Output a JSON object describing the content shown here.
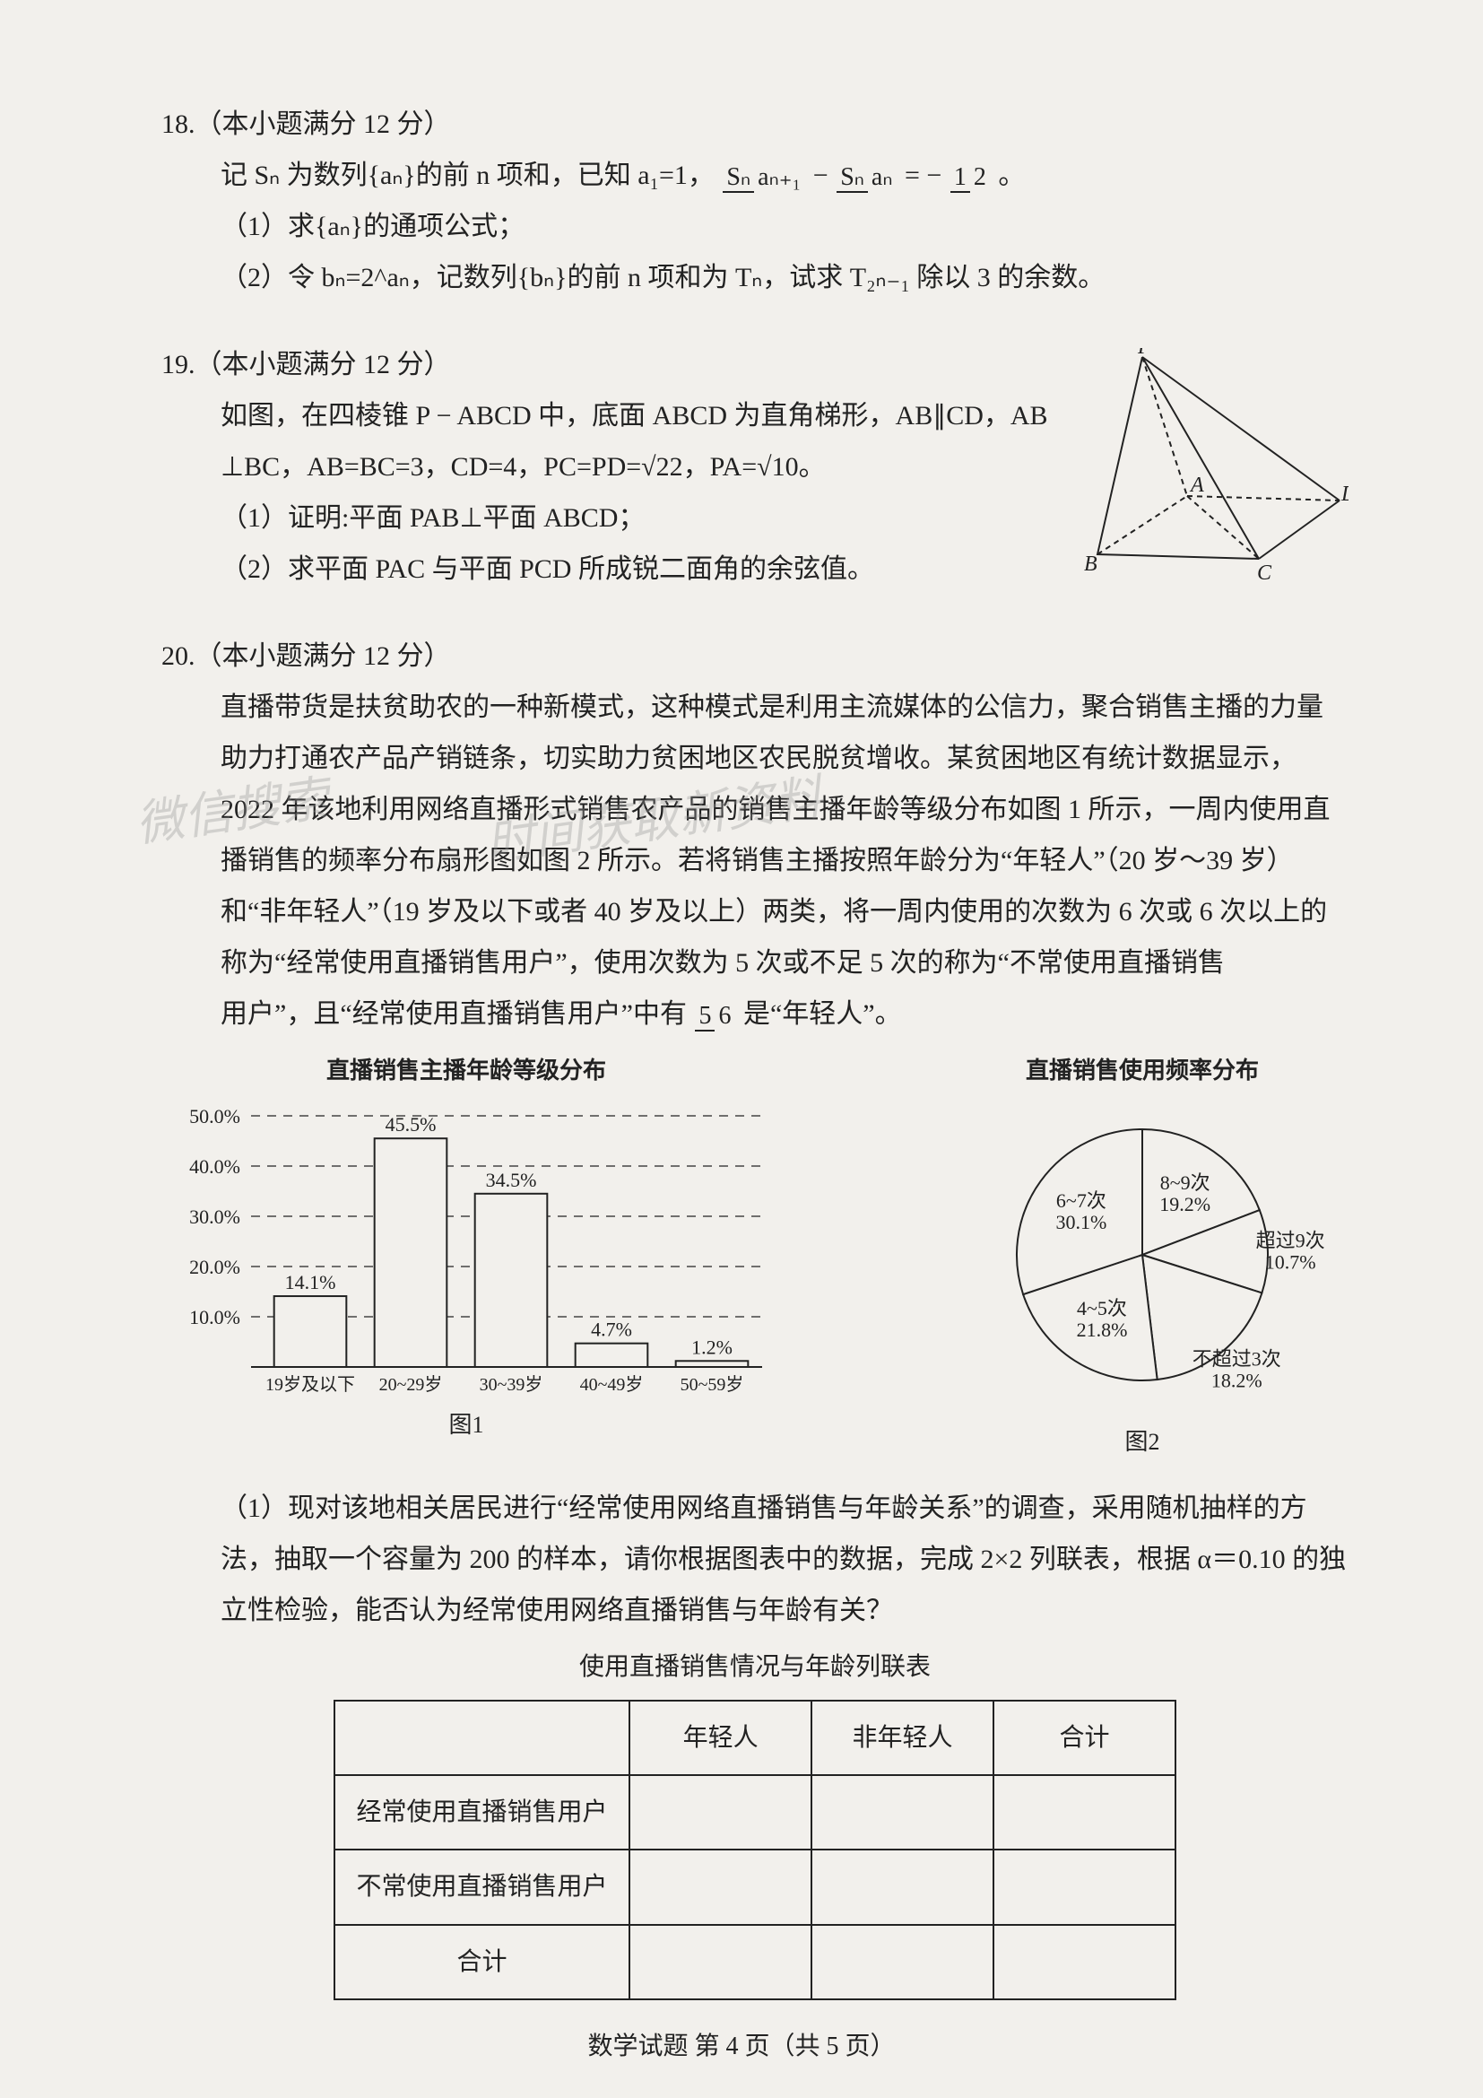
{
  "q18": {
    "header": "18.（本小题满分 12 分）",
    "line1_a": "记 Sₙ 为数列{aₙ}的前 n 项和，已知 a₁=1，",
    "frac1_top": "Sₙ",
    "frac1_bot": "aₙ₊₁",
    "minus": " − ",
    "frac2_top": "Sₙ",
    "frac2_bot": "aₙ",
    "eq": " = − ",
    "frac3_top": "1",
    "frac3_bot": "2",
    "period": "。",
    "part1": "（1）求{aₙ}的通项公式；",
    "part2": "（2）令 bₙ=2^aₙ，记数列{bₙ}的前 n 项和为 Tₙ，试求 T₂ₙ₋₁ 除以 3 的余数。"
  },
  "q19": {
    "header": "19.（本小题满分 12 分）",
    "line1": "如图，在四棱锥 P − ABCD 中，底面 ABCD 为直角梯形，AB∥CD，AB",
    "line2": "⊥BC，AB=BC=3，CD=4，PC=PD=√22，PA=√10。",
    "part1": "（1）证明:平面 PAB⊥平面 ABCD；",
    "part2": "（2）求平面 PAC 与平面 PCD 所成锐二面角的余弦值。",
    "labels": {
      "P": "P",
      "A": "A",
      "B": "B",
      "C": "C",
      "D": "D"
    }
  },
  "q20": {
    "header": "20.（本小题满分 12 分）",
    "para_a": "直播带货是扶贫助农的一种新模式，这种模式是利用主流媒体的公信力，聚合销售主播的力量助力打通农产品产销链条，切实助力贫困地区农民脱贫增收。某贫困地区有统计数据显示，2022 年该地利用网络直播形式销售农产品的销售主播年龄等级分布如图 1 所示，一周内使用直播销售的频率分布扇形图如图 2 所示。若将销售主播按照年龄分为“年轻人”（20 岁～39 岁）和“非年轻人”（19 岁及以下或者 40 岁及以上）两类，将一周内使用的次数为 6 次或 6 次以上的称为“经常使用直播销售用户”，使用次数为 5 次或不足 5 次的称为“不常使用直播销售",
    "para_b1": "用户”，且“经常使用直播销售用户”中有 ",
    "frac_top": "5",
    "frac_bot": "6",
    "para_b2": " 是“年轻人”。",
    "bar": {
      "title": "直播销售主播年龄等级分布",
      "ylabels": [
        "50.0%",
        "40.0%",
        "30.0%",
        "20.0%",
        "10.0%"
      ],
      "categories": [
        "19岁及以下",
        "20~29岁",
        "30~39岁",
        "40~49岁",
        "50~59岁"
      ],
      "values": [
        14.1,
        45.5,
        34.5,
        4.7,
        1.2
      ],
      "pct_labels": [
        "14.1%",
        "45.5%",
        "34.5%",
        "4.7%",
        "1.2%"
      ],
      "caption": "图1",
      "ymax": 50,
      "bar_fill": "#f2f0ec",
      "bar_stroke": "#222222",
      "dash_color": "#444444",
      "text_color": "#222222"
    },
    "pie": {
      "title": "直播销售使用频率分布",
      "segments": [
        {
          "label_l1": "8~9次",
          "label_l2": "19.2%",
          "value": 19.2
        },
        {
          "label_l1": "超过9次",
          "label_l2": "10.7%",
          "value": 10.7
        },
        {
          "label_l1": "不超过3次",
          "label_l2": "18.2%",
          "value": 18.2
        },
        {
          "label_l1": "4~5次",
          "label_l2": "21.8%",
          "value": 21.8
        },
        {
          "label_l1": "6~7次",
          "label_l2": "30.1%",
          "value": 30.1
        }
      ],
      "caption": "图2",
      "fill": "#f2f0ec",
      "stroke": "#222222"
    },
    "sub1": "（1）现对该地相关居民进行“经常使用网络直播销售与年龄关系”的调查，采用随机抽样的方法，抽取一个容量为 200 的样本，请你根据图表中的数据，完成 2×2 列联表，根据 α＝0.10 的独立性检验，能否认为经常使用网络直播销售与年龄有关？",
    "table": {
      "caption": "使用直播销售情况与年龄列联表",
      "headers": [
        "",
        "年轻人",
        "非年轻人",
        "合计"
      ],
      "rows": [
        [
          "经常使用直播销售用户",
          "",
          "",
          ""
        ],
        [
          "不常使用直播销售用户",
          "",
          "",
          ""
        ],
        [
          "合计",
          "",
          "",
          ""
        ]
      ]
    }
  },
  "footer": "数学试题 第 4 页（共 5 页）",
  "watermarks": {
    "w1": "微信搜索",
    "w2": "时间获取新资料"
  }
}
